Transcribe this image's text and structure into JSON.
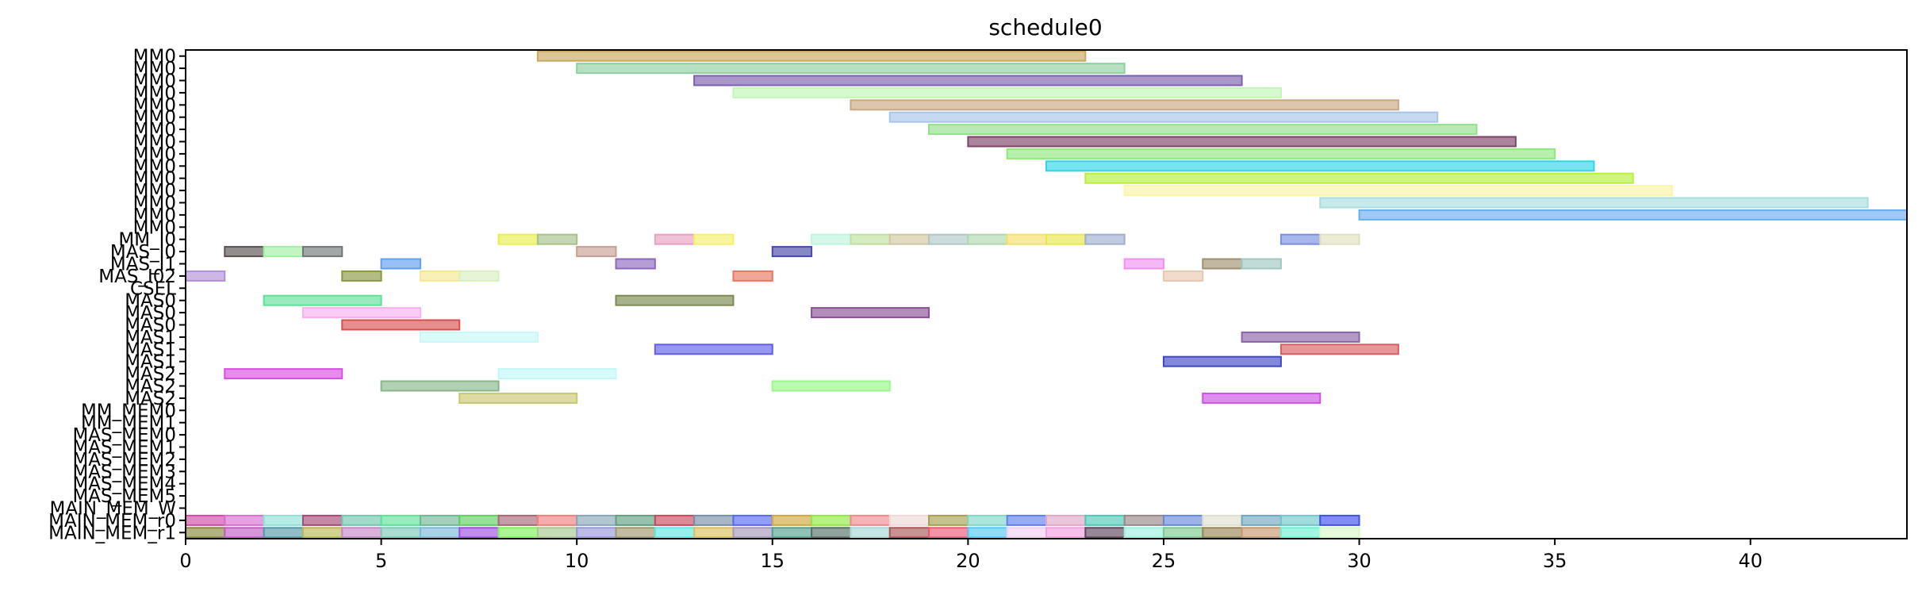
{
  "chart_data": {
    "type": "gantt",
    "title": "schedule0",
    "xlabel": "",
    "ylabel": "",
    "xlim": [
      0,
      44
    ],
    "x_ticks": [
      0,
      5,
      10,
      15,
      20,
      25,
      30,
      35,
      40
    ],
    "grid": false,
    "rows": [
      "MM0",
      "MM0",
      "MM0",
      "MM0",
      "MM0",
      "MM0",
      "MM0",
      "MM0",
      "MM0",
      "MM0",
      "MM0",
      "MM0",
      "MM0",
      "MM0",
      "MM0",
      "MM_I0",
      "MAS_I0",
      "MAS_I1",
      "MAS_I02",
      "CSEL",
      "MAS0",
      "MAS0",
      "MAS0",
      "MAS1",
      "MAS1",
      "MAS1",
      "MAS2",
      "MAS2",
      "MAS2",
      "MM_MEM0",
      "MM_MEM1",
      "MAS_MEM0",
      "MAS_MEM1",
      "MAS_MEM2",
      "MAS_MEM3",
      "MAS_MEM4",
      "MAS_MEM5",
      "MAIN_MEM_W",
      "MAIN_MEM_r0",
      "MAIN_MEM_r1"
    ],
    "tasks": [
      {
        "row": 0,
        "start": 9,
        "end": 23,
        "color": "#c8a85e"
      },
      {
        "row": 1,
        "start": 10,
        "end": 24,
        "color": "#8fd0a0"
      },
      {
        "row": 2,
        "start": 13,
        "end": 27,
        "color": "#7b5fb0"
      },
      {
        "row": 3,
        "start": 14,
        "end": 28,
        "color": "#bff7b4"
      },
      {
        "row": 4,
        "start": 17,
        "end": 31,
        "color": "#c9a882"
      },
      {
        "row": 5,
        "start": 18,
        "end": 32,
        "color": "#a8c4ea"
      },
      {
        "row": 6,
        "start": 19,
        "end": 33,
        "color": "#94de8e"
      },
      {
        "row": 7,
        "start": 20,
        "end": 34,
        "color": "#7e4468"
      },
      {
        "row": 8,
        "start": 21,
        "end": 35,
        "color": "#8fe87c"
      },
      {
        "row": 9,
        "start": 22,
        "end": 36,
        "color": "#2fd6e8"
      },
      {
        "row": 10,
        "start": 23,
        "end": 37,
        "color": "#b7f03a"
      },
      {
        "row": 11,
        "start": 24,
        "end": 38,
        "color": "#fbf5a8"
      },
      {
        "row": 12,
        "start": 29,
        "end": 43,
        "color": "#a8dede"
      },
      {
        "row": 13,
        "start": 30,
        "end": 44,
        "color": "#6aaef0"
      },
      {
        "row": 15,
        "start": 8,
        "end": 9,
        "color": "#e8f04a"
      },
      {
        "row": 15,
        "start": 9,
        "end": 10,
        "color": "#a8c08a"
      },
      {
        "row": 15,
        "start": 12,
        "end": 13,
        "color": "#e8a0c0"
      },
      {
        "row": 15,
        "start": 13,
        "end": 14,
        "color": "#f4f06a"
      },
      {
        "row": 15,
        "start": 16,
        "end": 17,
        "color": "#c0f4e0"
      },
      {
        "row": 15,
        "start": 17,
        "end": 18,
        "color": "#c0e0a0"
      },
      {
        "row": 15,
        "start": 18,
        "end": 19,
        "color": "#d0c8a0"
      },
      {
        "row": 15,
        "start": 19,
        "end": 20,
        "color": "#b0c8c8"
      },
      {
        "row": 15,
        "start": 20,
        "end": 21,
        "color": "#b0d8b0"
      },
      {
        "row": 15,
        "start": 21,
        "end": 22,
        "color": "#f4e06a"
      },
      {
        "row": 15,
        "start": 22,
        "end": 23,
        "color": "#e8e848"
      },
      {
        "row": 15,
        "start": 23,
        "end": 24,
        "color": "#a0aed0"
      },
      {
        "row": 15,
        "start": 28,
        "end": 29,
        "color": "#7a90e0"
      },
      {
        "row": 15,
        "start": 29,
        "end": 30,
        "color": "#e0e0c0"
      },
      {
        "row": 16,
        "start": 1,
        "end": 2,
        "color": "#5a5050"
      },
      {
        "row": 16,
        "start": 2,
        "end": 3,
        "color": "#a0f0a0"
      },
      {
        "row": 16,
        "start": 3,
        "end": 4,
        "color": "#707878"
      },
      {
        "row": 16,
        "start": 10,
        "end": 11,
        "color": "#c8a090"
      },
      {
        "row": 16,
        "start": 15,
        "end": 16,
        "color": "#4a48a8"
      },
      {
        "row": 17,
        "start": 5,
        "end": 6,
        "color": "#60a0f0"
      },
      {
        "row": 17,
        "start": 11,
        "end": 12,
        "color": "#9068c0"
      },
      {
        "row": 17,
        "start": 24,
        "end": 25,
        "color": "#f090f0"
      },
      {
        "row": 17,
        "start": 26,
        "end": 27,
        "color": "#a09070"
      },
      {
        "row": 17,
        "start": 27,
        "end": 28,
        "color": "#a0c8c0"
      },
      {
        "row": 18,
        "start": 0,
        "end": 1,
        "color": "#b090d8"
      },
      {
        "row": 18,
        "start": 4,
        "end": 5,
        "color": "#8a9840"
      },
      {
        "row": 18,
        "start": 6,
        "end": 7,
        "color": "#f4e890"
      },
      {
        "row": 18,
        "start": 7,
        "end": 8,
        "color": "#d8f0c0"
      },
      {
        "row": 18,
        "start": 14,
        "end": 15,
        "color": "#e87860"
      },
      {
        "row": 18,
        "start": 25,
        "end": 26,
        "color": "#e8c8b0"
      },
      {
        "row": 20,
        "start": 2,
        "end": 5,
        "color": "#60e098"
      },
      {
        "row": 20,
        "start": 11,
        "end": 14,
        "color": "#7a8a50"
      },
      {
        "row": 21,
        "start": 3,
        "end": 6,
        "color": "#f8b0f0"
      },
      {
        "row": 21,
        "start": 16,
        "end": 19,
        "color": "#8a5098"
      },
      {
        "row": 22,
        "start": 4,
        "end": 7,
        "color": "#d85050"
      },
      {
        "row": 23,
        "start": 6,
        "end": 9,
        "color": "#c8f8f8"
      },
      {
        "row": 23,
        "start": 27,
        "end": 30,
        "color": "#8a64a8"
      },
      {
        "row": 24,
        "start": 12,
        "end": 15,
        "color": "#6060e8"
      },
      {
        "row": 24,
        "start": 28,
        "end": 31,
        "color": "#d86060"
      },
      {
        "row": 25,
        "start": 25,
        "end": 28,
        "color": "#4048c8"
      },
      {
        "row": 26,
        "start": 1,
        "end": 4,
        "color": "#d850e0"
      },
      {
        "row": 26,
        "start": 8,
        "end": 11,
        "color": "#c0f8f8"
      },
      {
        "row": 27,
        "start": 5,
        "end": 8,
        "color": "#88b888"
      },
      {
        "row": 27,
        "start": 15,
        "end": 18,
        "color": "#98f888"
      },
      {
        "row": 28,
        "start": 7,
        "end": 10,
        "color": "#c8c870"
      },
      {
        "row": 28,
        "start": 26,
        "end": 29,
        "color": "#d050e8"
      }
    ],
    "memory_cells_r0": [
      "#d04aa8",
      "#d870d0",
      "#90e0d8",
      "#a84878",
      "#70c8b0",
      "#60e098",
      "#70b898",
      "#60d060",
      "#a86878",
      "#f08080",
      "#88a8b8",
      "#60a080",
      "#c84860",
      "#7890a8",
      "#5868f0",
      "#d0a840",
      "#90e840",
      "#f08890",
      "#f0d8d8",
      "#a8a050",
      "#80d8c8",
      "#6080f0",
      "#e0a8c8",
      "#50c8b8",
      "#988888",
      "#6888d8",
      "#e0e0d0",
      "#70a8c0",
      "#70c8c8",
      "#4050e8"
    ],
    "memory_cells_r1": [
      "#8a8840",
      "#c060c0",
      "#5898a8",
      "#b8b858",
      "#c888c8",
      "#80c8b8",
      "#80b8d8",
      "#a050e0",
      "#80f060",
      "#a8c890",
      "#9898d8",
      "#a09870",
      "#60e8e0",
      "#d8c060",
      "#a898b8",
      "#58a090",
      "#587068",
      "#a8d8d8",
      "#a85858",
      "#f05878",
      "#58c8f0",
      "#f0d0f0",
      "#f0a0e0",
      "#604860",
      "#a0f0e0",
      "#80c890",
      "#988858",
      "#c89870",
      "#70f0d0",
      "#d8f8c8"
    ]
  }
}
